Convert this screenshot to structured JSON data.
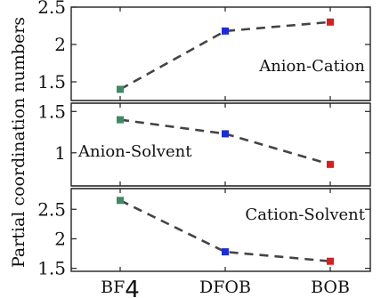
{
  "chart_data": {
    "type": "line",
    "categories": [
      "BF",
      "DFOB",
      "BOB"
    ],
    "category_subscripts": [
      "4",
      "",
      ""
    ],
    "ylabel": "Partial coordination numbers",
    "marker_colors": [
      "#3d8a68",
      "#1c2cd9",
      "#d62020"
    ],
    "line_color": "#444444",
    "line_style": "dashed",
    "panels": [
      {
        "label": "Anion-Cation",
        "label_placement": "right",
        "values": [
          1.4,
          2.18,
          2.3
        ],
        "ylim": [
          1.25,
          2.5
        ],
        "yticks": [
          1.5,
          2,
          2.5
        ],
        "ytick_labels": [
          "1.5",
          "2",
          "2.5"
        ]
      },
      {
        "label": "Anion-Solvent",
        "label_placement": "left",
        "values": [
          1.4,
          1.23,
          0.86
        ],
        "ylim": [
          0.6,
          1.6
        ],
        "yticks": [
          1,
          1.5
        ],
        "ytick_labels": [
          "1",
          "1.5"
        ]
      },
      {
        "label": "Cation-Solvent",
        "label_placement": "right",
        "values": [
          2.65,
          1.78,
          1.62
        ],
        "ylim": [
          1.45,
          2.85
        ],
        "yticks": [
          1.5,
          2,
          2.5
        ],
        "ytick_labels": [
          "1.5",
          "2",
          "2.5"
        ]
      }
    ]
  }
}
